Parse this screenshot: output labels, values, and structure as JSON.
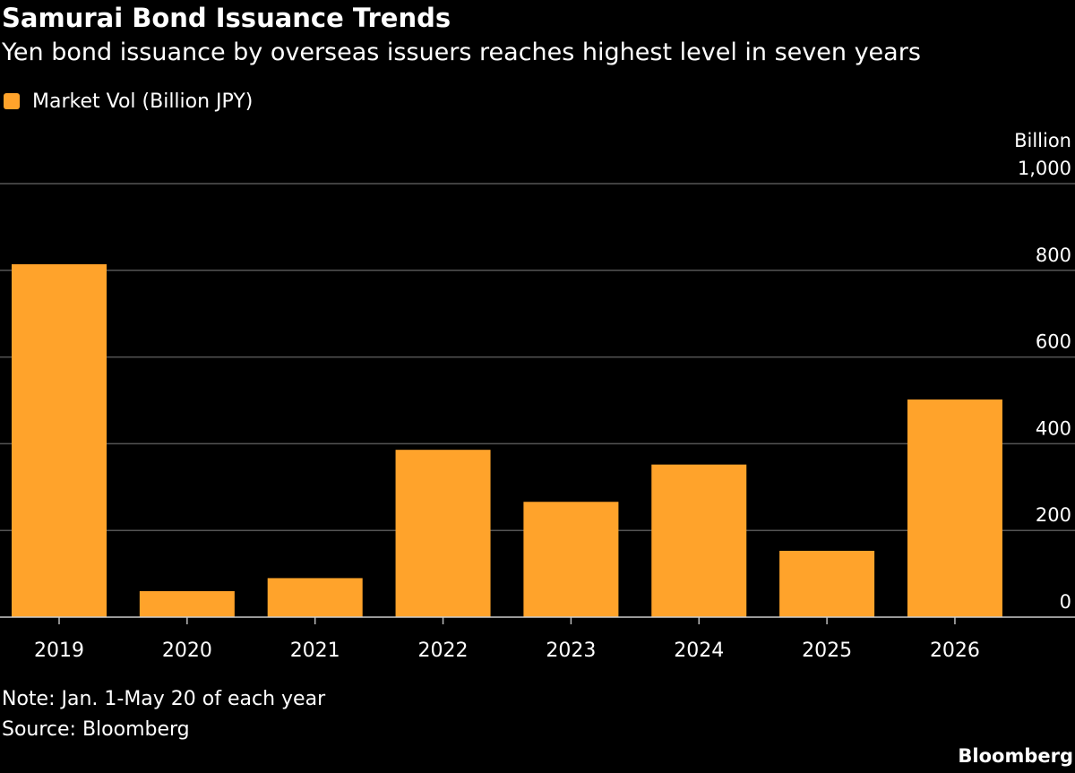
{
  "header": {
    "title": "Samurai Bond Issuance Trends",
    "subtitle": "Yen bond issuance by overseas issuers reaches highest level in seven years"
  },
  "legend": {
    "label": "Market Vol (Billion JPY)"
  },
  "footer": {
    "note": "Note: Jan. 1-May 20 of each year",
    "source": "Source: Bloomberg",
    "brand": "Bloomberg"
  },
  "colors": {
    "bar": "#FFA32B",
    "background": "#000000",
    "grid": "#555555",
    "text": "#ffffff"
  },
  "chart_data": {
    "type": "bar",
    "title": "Samurai Bond Issuance Trends",
    "subtitle": "Yen bond issuance by overseas issuers reaches highest level in seven years",
    "categories": [
      "2019",
      "2020",
      "2021",
      "2022",
      "2023",
      "2024",
      "2025",
      "2026"
    ],
    "series": [
      {
        "name": "Market Vol (Billion JPY)",
        "values": [
          814,
          60,
          90,
          386,
          266,
          352,
          153,
          502
        ]
      }
    ],
    "ylabel": "Billion",
    "ylim": [
      0,
      1000
    ],
    "yticks": [
      0,
      200,
      400,
      600,
      800,
      1000
    ],
    "ytick_labels": [
      "0",
      "200",
      "400",
      "600",
      "800",
      "1,000"
    ],
    "y_axis_side": "right",
    "grid": true,
    "legend_position": "top-left"
  }
}
